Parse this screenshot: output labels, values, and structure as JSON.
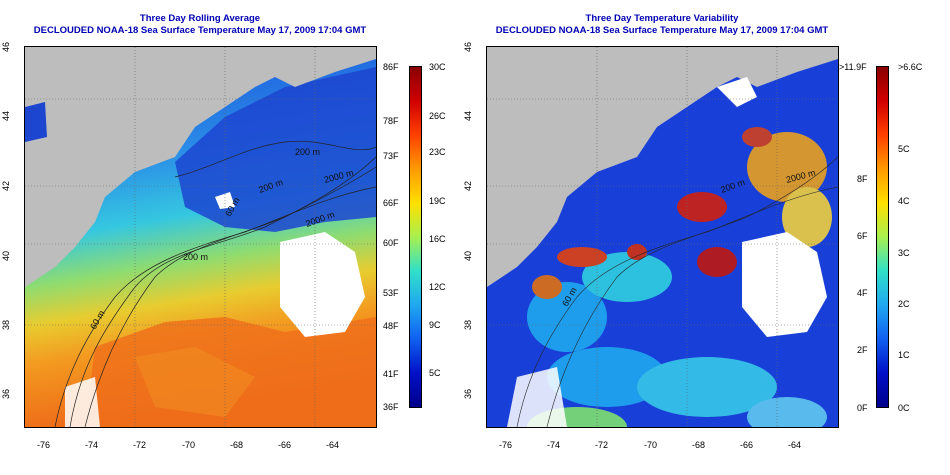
{
  "left_panel": {
    "title_line1": "Three Day Rolling Average",
    "title_line2": "DECLOUDED NOAA-18 Sea Surface Temperature May 17, 2009 17:04 GMT",
    "contours": [
      "2000 m",
      "200 m",
      "60 m",
      "200 m",
      "60 m",
      "200 m",
      "2000 m"
    ],
    "colorbar_f": [
      "86F",
      "78F",
      "73F",
      "66F",
      "60F",
      "53F",
      "48F",
      "41F",
      "36F"
    ],
    "colorbar_c": [
      "30C",
      "26C",
      "23C",
      "19C",
      "16C",
      "12C",
      "9C",
      "5C"
    ]
  },
  "right_panel": {
    "title_line1": "Three Day Temperature Variability",
    "title_line2": "DECLOUDED NOAA-18 Sea Surface Temperature May 17, 2009 17:04 GMT",
    "contours": [
      "2000 m",
      "200 m",
      "60 m"
    ],
    "colorbar_f": [
      ">11.9F",
      "8F",
      "6F",
      "4F",
      "2F",
      "0F"
    ],
    "colorbar_c": [
      ">6.6C",
      "5C",
      "4C",
      "3C",
      "2C",
      "1C",
      "0C"
    ]
  },
  "longitude_ticks": [
    "-76",
    "-74",
    "-72",
    "-70",
    "-68",
    "-66",
    "-64"
  ],
  "latitude_ticks": [
    "46",
    "44",
    "42",
    "40",
    "38",
    "36"
  ]
}
